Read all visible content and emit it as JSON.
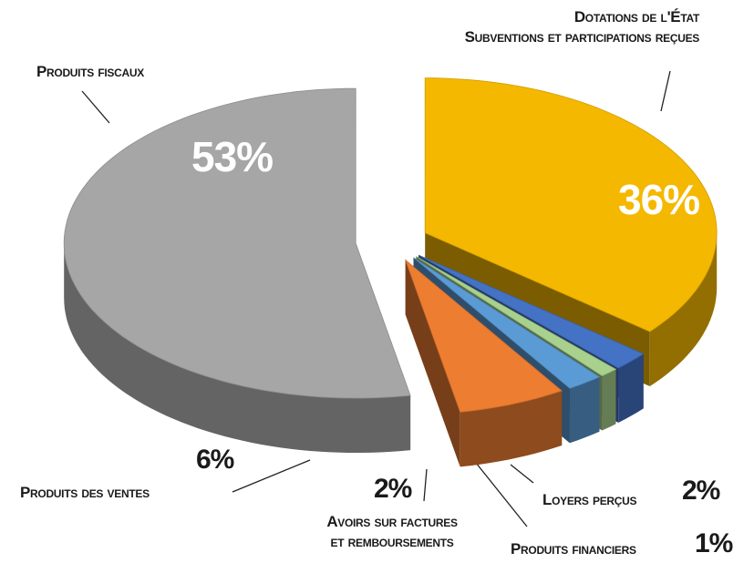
{
  "chart_data": {
    "type": "pie",
    "categories": [
      "Dotations de l'État\nSubventions et participations reçues",
      "Loyers perçus",
      "Produits financiers",
      "Avoirs sur factures\net remboursements",
      "Produits des ventes",
      "Produits fiscaux"
    ],
    "values": [
      36,
      2,
      1,
      2,
      6,
      53
    ],
    "value_labels": [
      "36%",
      "2%",
      "1%",
      "2%",
      "6%",
      "53%"
    ],
    "colors": [
      "#f5b800",
      "#4472c4",
      "#a9d18e",
      "#5b9bd5",
      "#ed7d31",
      "#a6a6a6"
    ]
  }
}
